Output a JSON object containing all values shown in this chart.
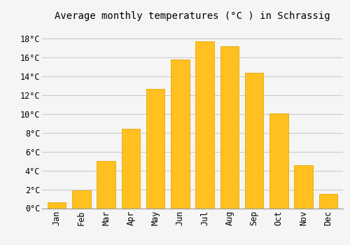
{
  "title": "Average monthly temperatures (°C ) in Schrassig",
  "months": [
    "Jan",
    "Feb",
    "Mar",
    "Apr",
    "May",
    "Jun",
    "Jul",
    "Aug",
    "Sep",
    "Oct",
    "Nov",
    "Dec"
  ],
  "values": [
    0.6,
    1.9,
    5.0,
    8.4,
    12.7,
    15.8,
    17.7,
    17.2,
    14.4,
    10.1,
    4.6,
    1.5
  ],
  "bar_color": "#FFC020",
  "bar_edge_color": "#E8A800",
  "background_color": "#F5F5F5",
  "plot_bg_color": "#F5F5F5",
  "grid_color": "#CCCCCC",
  "yticks": [
    0,
    2,
    4,
    6,
    8,
    10,
    12,
    14,
    16,
    18
  ],
  "ylim": [
    0,
    19.5
  ],
  "title_fontsize": 10,
  "tick_fontsize": 8.5,
  "font_family": "monospace",
  "bar_width": 0.75
}
